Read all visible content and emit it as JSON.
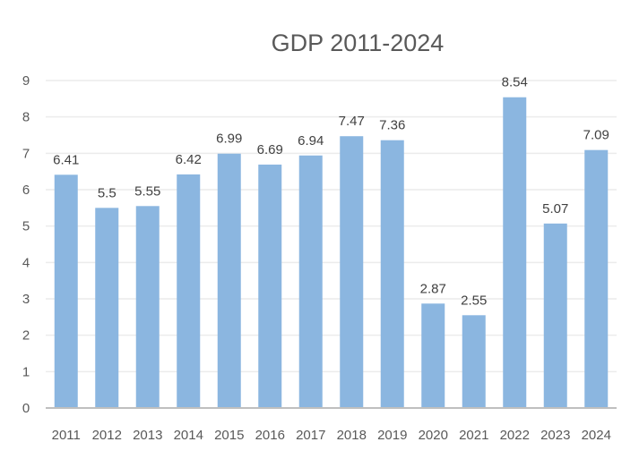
{
  "chart_data": {
    "type": "bar",
    "title": "GDP 2011-2024",
    "xlabel": "",
    "ylabel": "",
    "categories": [
      "2011",
      "2012",
      "2013",
      "2014",
      "2015",
      "2016",
      "2017",
      "2018",
      "2019",
      "2020",
      "2021",
      "2022",
      "2023",
      "2024"
    ],
    "values": [
      6.41,
      5.5,
      5.55,
      6.42,
      6.99,
      6.69,
      6.94,
      7.47,
      7.36,
      2.87,
      2.55,
      8.54,
      5.07,
      7.09
    ],
    "data_labels": [
      "6.41",
      "5.5",
      "5.55",
      "6.42",
      "6.99",
      "6.69",
      "6.94",
      "7.47",
      "7.36",
      "2.87",
      "2.55",
      "8.54",
      "5.07",
      "7.09"
    ],
    "ylim": [
      0,
      9
    ],
    "yticks": [
      "0",
      "1",
      "2",
      "3",
      "4",
      "5",
      "6",
      "7",
      "8",
      "9"
    ],
    "grid": true,
    "legend": "none",
    "bar_color": "#8bb6e0"
  }
}
